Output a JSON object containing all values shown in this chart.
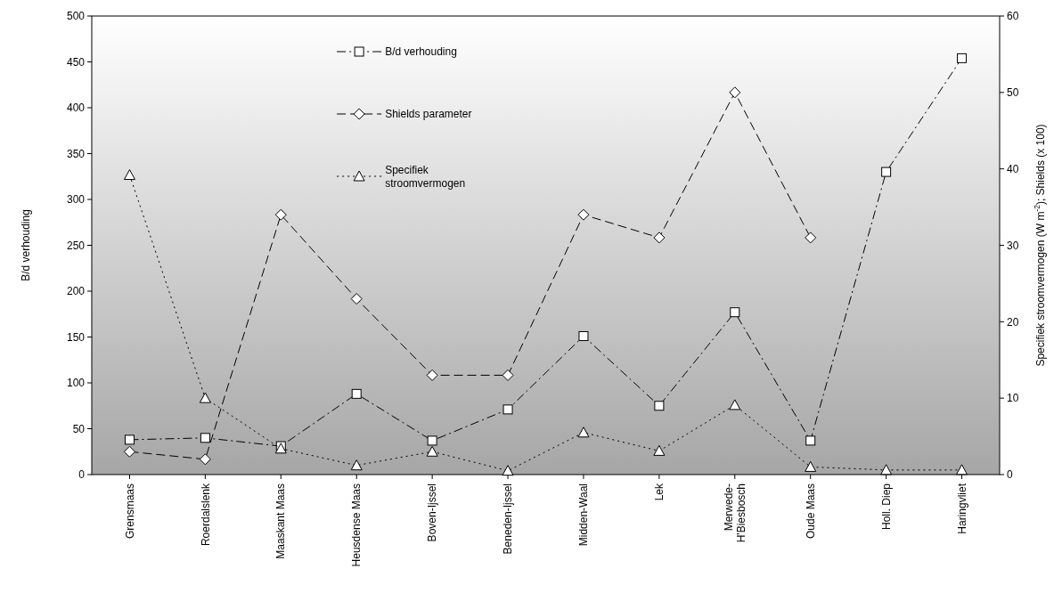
{
  "chart_data": {
    "type": "line",
    "categories": [
      "Grensmaas",
      "Roerdalslenk",
      "Maaskant Maas",
      "Heusdense Maas",
      "Boven-Ijssel",
      "Beneden-Ijssel",
      "Midden-Waal",
      "Lek",
      "Merwede-H'Biesbosch",
      "Oude Maas",
      "Holl. Diep",
      "Haringvliet"
    ],
    "series": [
      {
        "name": "B/d verhouding",
        "color": "#000000",
        "marker": "square",
        "line_style": "dashdot",
        "values": [
          38,
          40,
          31,
          88,
          37,
          71,
          151,
          75,
          177,
          37,
          330,
          454
        ]
      },
      {
        "name": "Shields parameter",
        "color": "#000000",
        "marker": "diamond",
        "line_style": "dashed",
        "axis": "y2",
        "values": [
          3,
          2,
          34,
          23,
          13,
          13,
          34,
          31,
          50,
          31,
          null,
          null
        ]
      },
      {
        "name": "Specifiek stroomvermogen",
        "color": "#000000",
        "marker": "triangle",
        "line_style": "dotted",
        "axis": "y2",
        "values": [
          39.2,
          10,
          3.4,
          1.2,
          3,
          0.5,
          5.5,
          3.1,
          9.1,
          1,
          0.6,
          0.6
        ]
      }
    ],
    "ylabel": "B/d verhouding",
    "y2label": "Specifiek stroomvermogen (W m$^{-2}$); Shields (x 100)",
    "ylim": [
      0,
      500
    ],
    "yticks": [
      0,
      50,
      100,
      150,
      200,
      250,
      300,
      350,
      400,
      450,
      500
    ],
    "y2lim": [
      0,
      60
    ],
    "y2ticks": [
      0,
      10,
      20,
      30,
      40,
      50,
      60
    ],
    "grid": false,
    "legend": "top"
  }
}
